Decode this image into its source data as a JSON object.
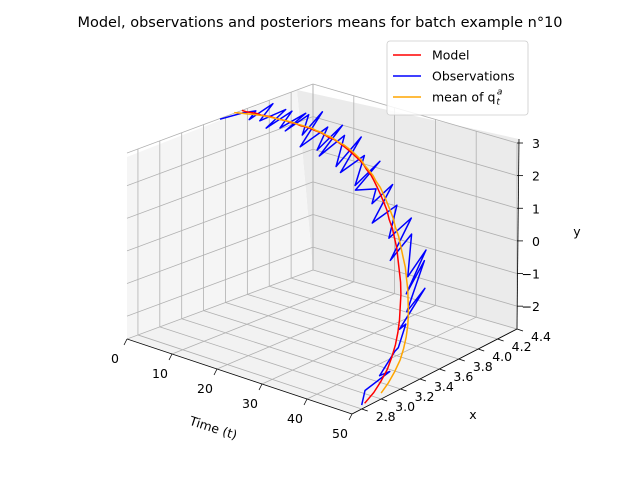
{
  "chart_data": {
    "type": "line",
    "projection": "3d",
    "title": "Model, observations and posteriors means for batch example n°10",
    "axes": {
      "time": {
        "label": "Time (t)",
        "range": [
          0,
          50
        ],
        "ticks": [
          "0",
          "10",
          "20",
          "30",
          "40",
          "50"
        ]
      },
      "x": {
        "label": "x",
        "range": [
          2.7,
          4.4
        ],
        "ticks": [
          "2.8",
          "3.0",
          "3.2",
          "3.4",
          "3.6",
          "3.8",
          "4.0",
          "4.2",
          "4.4"
        ]
      },
      "y": {
        "label": "y",
        "range": [
          -2.7,
          3.0
        ],
        "ticks": [
          "−2",
          "−1",
          "0",
          "1",
          "2",
          "3"
        ]
      }
    },
    "grid": true,
    "legend_position": "top-right",
    "legend": [
      {
        "label": "Model",
        "color": "#ff0000"
      },
      {
        "label": "Observations",
        "color": "#0000ff"
      },
      {
        "label": "mean of q",
        "sub": "t",
        "sup": "a",
        "color": "#ffa500"
      }
    ],
    "series": [
      {
        "name": "Model",
        "color": "#ff0000",
        "time": [
          0,
          1,
          2,
          3,
          4,
          5,
          6,
          7,
          8,
          9,
          10,
          11,
          12,
          13,
          14,
          15,
          16,
          17,
          18,
          19,
          20,
          21,
          22,
          23,
          24,
          25,
          26,
          27,
          28,
          29,
          30,
          31,
          32,
          33,
          34,
          35,
          36,
          37,
          38,
          39,
          40,
          41,
          42,
          43,
          44,
          45,
          46,
          47,
          48,
          49,
          50
        ],
        "x": [
          3.75,
          3.75,
          3.76,
          3.77,
          3.77,
          3.78,
          3.79,
          3.79,
          3.8,
          3.81,
          3.81,
          3.82,
          3.82,
          3.83,
          3.84,
          3.84,
          3.85,
          3.85,
          3.85,
          3.86,
          3.86,
          3.86,
          3.86,
          3.86,
          3.86,
          3.86,
          3.86,
          3.85,
          3.85,
          3.84,
          3.83,
          3.82,
          3.81,
          3.8,
          3.78,
          3.77,
          3.75,
          3.73,
          3.7,
          3.67,
          3.64,
          3.6,
          3.55,
          3.5,
          3.44,
          3.37,
          3.29,
          3.2,
          3.09,
          2.97,
          2.83
        ],
        "y": [
          3.0,
          3.0,
          3.0,
          3.0,
          2.99,
          2.99,
          2.99,
          2.98,
          2.97,
          2.96,
          2.95,
          2.94,
          2.92,
          2.91,
          2.88,
          2.86,
          2.83,
          2.8,
          2.76,
          2.72,
          2.67,
          2.62,
          2.56,
          2.49,
          2.41,
          2.33,
          2.23,
          2.12,
          2.0,
          1.87,
          1.72,
          1.56,
          1.38,
          1.19,
          0.98,
          0.76,
          0.53,
          0.28,
          0.02,
          -0.24,
          -0.51,
          -0.79,
          -1.06,
          -1.33,
          -1.58,
          -1.82,
          -2.03,
          -2.22,
          -2.38,
          -2.5,
          -2.57
        ]
      },
      {
        "name": "Observations",
        "color": "#0000ff",
        "time": [
          0,
          1,
          2,
          3,
          4,
          5,
          6,
          7,
          8,
          9,
          10,
          11,
          12,
          13,
          14,
          15,
          16,
          17,
          18,
          19,
          20,
          21,
          22,
          23,
          24,
          25,
          26,
          27,
          28,
          29,
          30,
          31,
          32,
          33,
          34,
          35,
          36,
          37,
          38,
          39,
          40,
          41,
          42,
          43,
          44,
          45,
          46,
          47,
          48,
          49,
          50
        ],
        "x": [
          3.55,
          3.72,
          3.8,
          3.7,
          3.88,
          3.72,
          3.92,
          3.7,
          3.9,
          3.75,
          3.95,
          3.72,
          3.9,
          3.8,
          3.95,
          3.7,
          3.92,
          3.78,
          3.98,
          3.72,
          3.92,
          3.8,
          4.0,
          3.76,
          3.95,
          3.82,
          4.02,
          3.74,
          3.9,
          3.82,
          3.98,
          3.74,
          3.94,
          3.82,
          4.0,
          3.75,
          3.92,
          3.84,
          3.98,
          3.74,
          3.88,
          3.66,
          3.8,
          3.5,
          3.52,
          3.4,
          3.32,
          3.12,
          3.18,
          2.88,
          2.8
        ],
        "y": [
          2.98,
          3.0,
          3.0,
          2.9,
          3.2,
          2.92,
          3.05,
          2.8,
          3.1,
          2.82,
          3.05,
          2.85,
          3.15,
          2.7,
          3.25,
          2.55,
          2.9,
          2.42,
          2.95,
          2.4,
          2.8,
          2.05,
          2.72,
          2.0,
          2.3,
          1.6,
          2.1,
          1.65,
          1.5,
          1.2,
          1.6,
          0.8,
          1.1,
          0.3,
          0.7,
          -0.2,
          0.4,
          -0.75,
          -0.1,
          -1.05,
          -0.2,
          -1.4,
          -0.85,
          -1.62,
          -1.45,
          -1.95,
          -1.9,
          -2.3,
          -2.22,
          -2.3,
          -2.58
        ]
      },
      {
        "name": "mean of q_t^a",
        "color": "#ffa500",
        "time": [
          0,
          1,
          2,
          3,
          4,
          5,
          6,
          7,
          8,
          9,
          10,
          11,
          12,
          13,
          14,
          15,
          16,
          17,
          18,
          19,
          20,
          21,
          22,
          23,
          24,
          25,
          26,
          27,
          28,
          29,
          30,
          31,
          32,
          33,
          34,
          35,
          36,
          37,
          38,
          39,
          40,
          41,
          42,
          43,
          44,
          45,
          46,
          47,
          48,
          49,
          50
        ],
        "x": [
          3.68,
          3.7,
          3.72,
          3.74,
          3.76,
          3.77,
          3.78,
          3.79,
          3.8,
          3.81,
          3.82,
          3.82,
          3.83,
          3.84,
          3.85,
          3.85,
          3.86,
          3.86,
          3.87,
          3.87,
          3.87,
          3.88,
          3.88,
          3.88,
          3.88,
          3.88,
          3.87,
          3.87,
          3.87,
          3.86,
          3.86,
          3.85,
          3.84,
          3.83,
          3.82,
          3.8,
          3.79,
          3.77,
          3.75,
          3.73,
          3.7,
          3.67,
          3.63,
          3.59,
          3.54,
          3.48,
          3.41,
          3.33,
          3.23,
          3.12,
          3.0
        ],
        "y": [
          3.02,
          3.02,
          3.01,
          3.01,
          3.0,
          3.0,
          2.99,
          2.98,
          2.97,
          2.96,
          2.95,
          2.94,
          2.92,
          2.9,
          2.88,
          2.85,
          2.82,
          2.78,
          2.74,
          2.7,
          2.65,
          2.59,
          2.53,
          2.46,
          2.38,
          2.29,
          2.19,
          2.08,
          1.96,
          1.83,
          1.68,
          1.52,
          1.35,
          1.16,
          0.96,
          0.75,
          0.52,
          0.28,
          0.03,
          -0.22,
          -0.48,
          -0.74,
          -1.0,
          -1.26,
          -1.51,
          -1.74,
          -1.95,
          -2.14,
          -2.3,
          -2.43,
          -2.52
        ]
      }
    ]
  }
}
